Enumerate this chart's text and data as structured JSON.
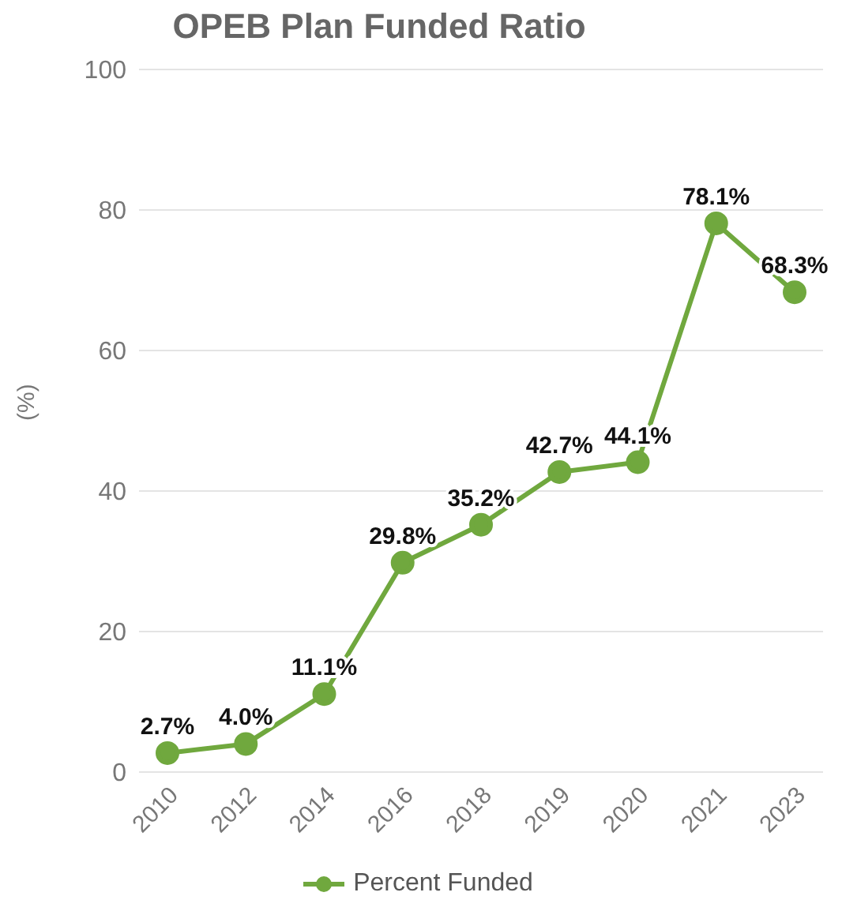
{
  "chart_data": {
    "type": "line",
    "title": "OPEB Plan Funded Ratio",
    "ylabel": "(%)",
    "categories": [
      "2010",
      "2012",
      "2014",
      "2016",
      "2018",
      "2019",
      "2020",
      "2021",
      "2023"
    ],
    "series": [
      {
        "name": "Percent Funded",
        "color": "#70a83e",
        "values": [
          2.7,
          4.0,
          11.1,
          29.8,
          35.2,
          42.7,
          44.1,
          78.1,
          68.3
        ],
        "value_labels": [
          "2.7%",
          "4.0%",
          "11.1%",
          "29.8%",
          "35.2%",
          "42.7%",
          "44.1%",
          "78.1%",
          "68.3%"
        ]
      }
    ],
    "ylim": [
      0,
      100
    ],
    "yticks": [
      0,
      20,
      40,
      60,
      80,
      100
    ],
    "grid": "y",
    "legend": "bottom",
    "marker": "circle",
    "line_style": "solid"
  }
}
